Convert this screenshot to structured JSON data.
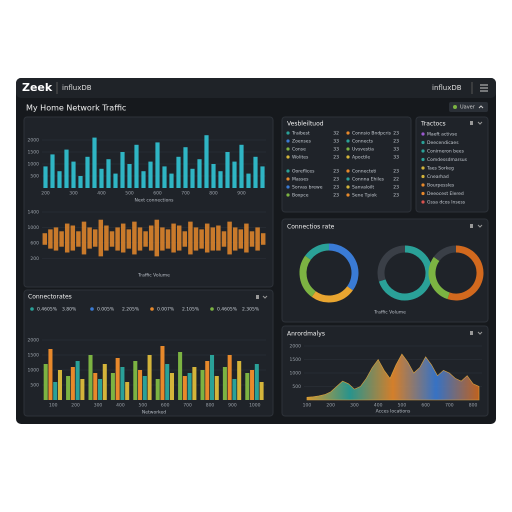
{
  "header": {
    "logo": "Zeek",
    "product": "influxDB",
    "product_right": "influxDB"
  },
  "dashboard": {
    "title": "My Home Network Traffic",
    "button": "Uaver"
  },
  "panels": {
    "top_list": {
      "title": "Vesbleiltuod",
      "items_left": [
        {
          "label": "Traibest",
          "value": 32,
          "color": "#2aa198"
        },
        {
          "label": "Zoenses",
          "value": 33,
          "color": "#3a7bd5"
        },
        {
          "label": "Conse",
          "value": 33,
          "color": "#7cb342"
        },
        {
          "label": "Wolites",
          "value": 23,
          "color": "#d4b43a"
        },
        {
          "label": "Ooreflices",
          "value": 23,
          "color": "#2aa198"
        },
        {
          "label": "Masses",
          "value": 23,
          "color": "#e8892b"
        },
        {
          "label": "Sorvas brewe",
          "value": 23,
          "color": "#3a7bd5"
        },
        {
          "label": "Boxpce",
          "value": 23,
          "color": "#7cb342"
        }
      ],
      "items_right": [
        {
          "label": "Connsio Bndpcris",
          "value": 23,
          "color": "#e8892b"
        },
        {
          "label": "Connects",
          "value": 23,
          "color": "#2aa198"
        },
        {
          "label": "Uvsvestia",
          "value": 33,
          "color": "#7cb342"
        },
        {
          "label": "Apoctile",
          "value": 33,
          "color": "#d4b43a"
        },
        {
          "label": "Connecteti",
          "value": 23,
          "color": "#e8892b"
        },
        {
          "label": "Connna Ehiles",
          "value": 22,
          "color": "#2aa198"
        },
        {
          "label": "Sanvaloilt",
          "value": 23,
          "color": "#d4b43a"
        },
        {
          "label": "Sene Tpiok",
          "value": 23,
          "color": "#e8892b"
        }
      ]
    },
    "tractocs": {
      "title": "Tractocs",
      "items": [
        {
          "label": "Maeft activse",
          "color": "#9b59d0"
        },
        {
          "label": "Deecendicaes",
          "color": "#2aa198"
        },
        {
          "label": "Conirneron bees",
          "color": "#2aa198"
        },
        {
          "label": "Comdessdmarsus",
          "color": "#2aa198"
        },
        {
          "label": "Taes Sorkeg",
          "color": "#d4b43a"
        },
        {
          "label": "Cnearhad",
          "color": "#d4b43a"
        },
        {
          "label": "Bourpessles",
          "color": "#e8892b"
        },
        {
          "label": "Deeocest Elered",
          "color": "#e8892b"
        },
        {
          "label": "Gssa dcos lnsess",
          "color": "#d9534f"
        }
      ]
    },
    "rates": {
      "title": "Connectorates",
      "stats": [
        {
          "color": "#2aa198",
          "a": "0.4605%",
          "b": "3.80%"
        },
        {
          "color": "#3a7bd5",
          "a": "0.005%",
          "b": "2.205%"
        },
        {
          "color": "#e8892b",
          "a": "0.007%",
          "b": "2.105%"
        },
        {
          "color": "#7cb342",
          "a": "0.4605%",
          "b": "2.305%"
        }
      ]
    },
    "donuts": {
      "title": "Connectios rate"
    },
    "anomalies": {
      "title": "Anrordmalys"
    }
  },
  "chart_data": [
    {
      "type": "bar",
      "color": "#2fb5c4",
      "xlabel": "Next connections",
      "categories": [
        "200",
        null,
        null,
        null,
        "300",
        null,
        null,
        null,
        "400",
        null,
        null,
        null,
        "500",
        null,
        null,
        null,
        "600",
        null,
        null,
        null,
        "700",
        null,
        null,
        null,
        "800",
        null,
        null,
        null,
        "900",
        null,
        null,
        null
      ],
      "values": [
        900,
        1400,
        700,
        1600,
        1100,
        500,
        1300,
        2100,
        800,
        1200,
        600,
        1500,
        1000,
        1800,
        700,
        1100,
        1900,
        900,
        600,
        1300,
        1700,
        800,
        1200,
        2200,
        1000,
        700,
        1500,
        1100,
        1800,
        600,
        1300,
        900
      ],
      "ylim": [
        0,
        2500
      ],
      "yticks": [
        500,
        1000,
        1500,
        2000
      ],
      "grid": true
    },
    {
      "type": "band",
      "color": "#e8892b",
      "xlabel": "Traffic Volume",
      "high": [
        850,
        950,
        1000,
        900,
        1100,
        1050,
        900,
        1150,
        1000,
        950,
        1200,
        1050,
        900,
        1000,
        1100,
        950,
        1150,
        1000,
        900,
        1050,
        1200,
        1000,
        950,
        1100,
        1050,
        900,
        1150,
        1000,
        950,
        1100,
        1000,
        1050,
        900,
        1150,
        1000,
        950,
        1100,
        900,
        1000,
        850
      ],
      "low": [
        550,
        450,
        400,
        500,
        350,
        400,
        500,
        300,
        450,
        500,
        250,
        400,
        500,
        400,
        350,
        450,
        300,
        400,
        500,
        400,
        250,
        400,
        450,
        350,
        400,
        500,
        300,
        400,
        450,
        350,
        400,
        400,
        500,
        300,
        400,
        450,
        350,
        500,
        400,
        550
      ],
      "ylim": [
        0,
        1400
      ],
      "yticks": [
        200,
        600,
        1000,
        1400
      ],
      "grid": true
    },
    {
      "type": "bar",
      "xlabel": "Networked",
      "categories": [
        "100",
        "200",
        "300",
        "400",
        "500",
        "600",
        "700",
        "800",
        "900",
        "1000"
      ],
      "series": [
        {
          "color": "#7cb342",
          "values": [
            1200,
            800,
            1500,
            900,
            1300,
            700,
            1600,
            1000,
            1100,
            900
          ]
        },
        {
          "color": "#e8892b",
          "values": [
            1700,
            1100,
            900,
            1400,
            1000,
            1800,
            800,
            1300,
            1500,
            1000
          ]
        },
        {
          "color": "#2aa198",
          "values": [
            600,
            1300,
            700,
            1100,
            800,
            1200,
            900,
            1500,
            700,
            1200
          ]
        },
        {
          "color": "#d4b43a",
          "values": [
            1000,
            700,
            1200,
            600,
            1500,
            900,
            1100,
            800,
            1300,
            600
          ]
        }
      ],
      "ylim": [
        0,
        2000
      ],
      "yticks": [
        500,
        1000,
        1500,
        2000
      ],
      "grid": true
    },
    {
      "type": "pie",
      "values": [
        35,
        25,
        25,
        15
      ],
      "colors": [
        "#3a7bd5",
        "#e8a530",
        "#7cb342",
        "#2aa198"
      ]
    },
    {
      "type": "pie",
      "xlabel": "Traffic Volume",
      "values": [
        70,
        30
      ],
      "colors": [
        "#2aa198",
        "#3a3f47"
      ]
    },
    {
      "type": "pie",
      "values": [
        55,
        30,
        15
      ],
      "colors": [
        "#d2691e",
        "#7cb342",
        "#3a3f47"
      ]
    },
    {
      "type": "area",
      "xlabel": "Acces locations",
      "categories": [
        "100",
        null,
        null,
        null,
        "200",
        null,
        null,
        null,
        "300",
        null,
        null,
        null,
        "400",
        null,
        null,
        null,
        "500",
        null,
        null,
        null,
        "600",
        null,
        null,
        null,
        "700",
        null,
        null,
        null,
        "800",
        null
      ],
      "values": [
        100,
        120,
        150,
        200,
        300,
        500,
        700,
        600,
        400,
        500,
        800,
        1200,
        1500,
        1100,
        800,
        1300,
        1700,
        1400,
        1000,
        1200,
        1600,
        1300,
        900,
        1100,
        1000,
        800,
        700,
        900,
        600,
        500
      ],
      "colors": [
        "#e8a530",
        "#2aa198",
        "#e8892b",
        "#3a7bd5",
        "#d2691e"
      ],
      "ylim": [
        0,
        2000
      ],
      "yticks": [
        500,
        1000,
        1500,
        2000
      ],
      "grid": true
    }
  ]
}
